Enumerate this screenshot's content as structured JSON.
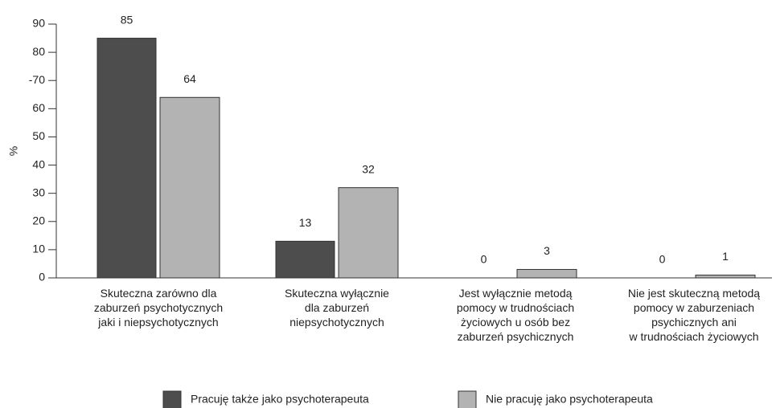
{
  "chart_data": {
    "type": "bar",
    "y_label": "%",
    "categories": [
      "Skuteczna zarówno dla\nzaburzeń psychotycznych\njaki i niepsychotycznych",
      "Skuteczna wyłącznie\ndla zaburzeń\nniepsychotycznych",
      "Jest wyłącznie metodą\npomocy w trudnościach\nżyciowych u osób bez\nzaburzeń psychicznych",
      "Nie jest skuteczną metodą\npomocy w zaburzeniach\npsychicznych ani\nw trudnościach życiowych"
    ],
    "series": [
      {
        "name": "Pracuję także jako psychoterapeuta",
        "color": "#4d4d4d",
        "values": [
          85,
          13,
          0,
          0
        ]
      },
      {
        "name": "Nie pracuję jako psychoterapeuta",
        "color": "#b3b3b3",
        "values": [
          64,
          32,
          3,
          1
        ]
      }
    ],
    "ylim": [
      0,
      90
    ],
    "yticks": [
      0,
      10,
      20,
      30,
      40,
      50,
      60,
      {
        "value": 70,
        "label": "-70"
      },
      80,
      90
    ]
  }
}
